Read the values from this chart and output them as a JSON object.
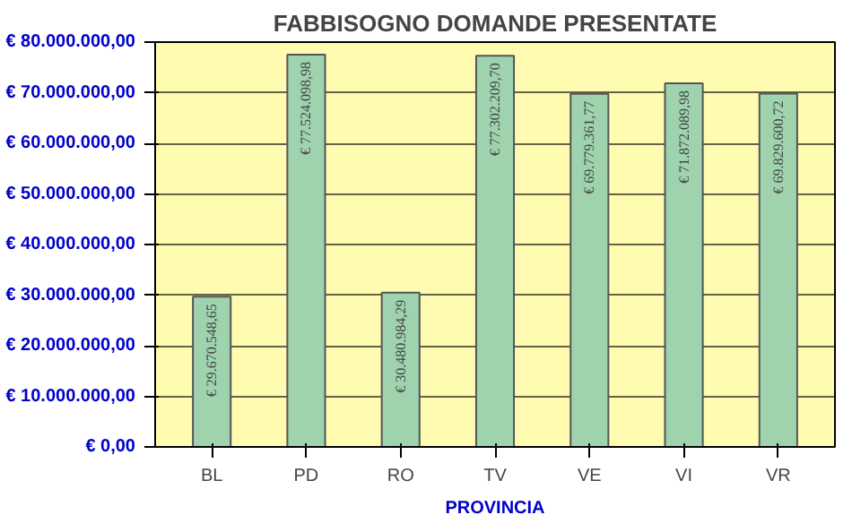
{
  "chart_data": {
    "type": "bar",
    "title": "FABBISOGNO DOMANDE PRESENTATE",
    "xlabel": "PROVINCIA",
    "categories": [
      "BL",
      "PD",
      "RO",
      "TV",
      "VE",
      "VI",
      "VR"
    ],
    "values": [
      29670548.65,
      77524098.98,
      30480984.29,
      77302209.7,
      69779361.77,
      71872089.98,
      69829600.72
    ],
    "value_labels": [
      "€ 29.670.548,65",
      "€ 77.524.098,98",
      "€ 30.480.984,29",
      "€ 77.302.209,70",
      "€ 69.779.361,77",
      "€ 71.872.089,98",
      "€ 69.829.600,72"
    ],
    "color": "#9fd3ae",
    "ylim": [
      0,
      80000000
    ],
    "yticks": [
      {
        "value": 0,
        "label": "€ 0,00"
      },
      {
        "value": 10000000,
        "label": "€ 10.000.000,00"
      },
      {
        "value": 20000000,
        "label": "€ 20.000.000,00"
      },
      {
        "value": 30000000,
        "label": "€ 30.000.000,00"
      },
      {
        "value": 40000000,
        "label": "€ 40.000.000,00"
      },
      {
        "value": 50000000,
        "label": "€ 50.000.000,00"
      },
      {
        "value": 60000000,
        "label": "€ 60.000.000,00"
      },
      {
        "value": 70000000,
        "label": "€ 70.000.000,00"
      },
      {
        "value": 80000000,
        "label": "€ 80.000.000,00"
      }
    ],
    "grid": "y"
  }
}
